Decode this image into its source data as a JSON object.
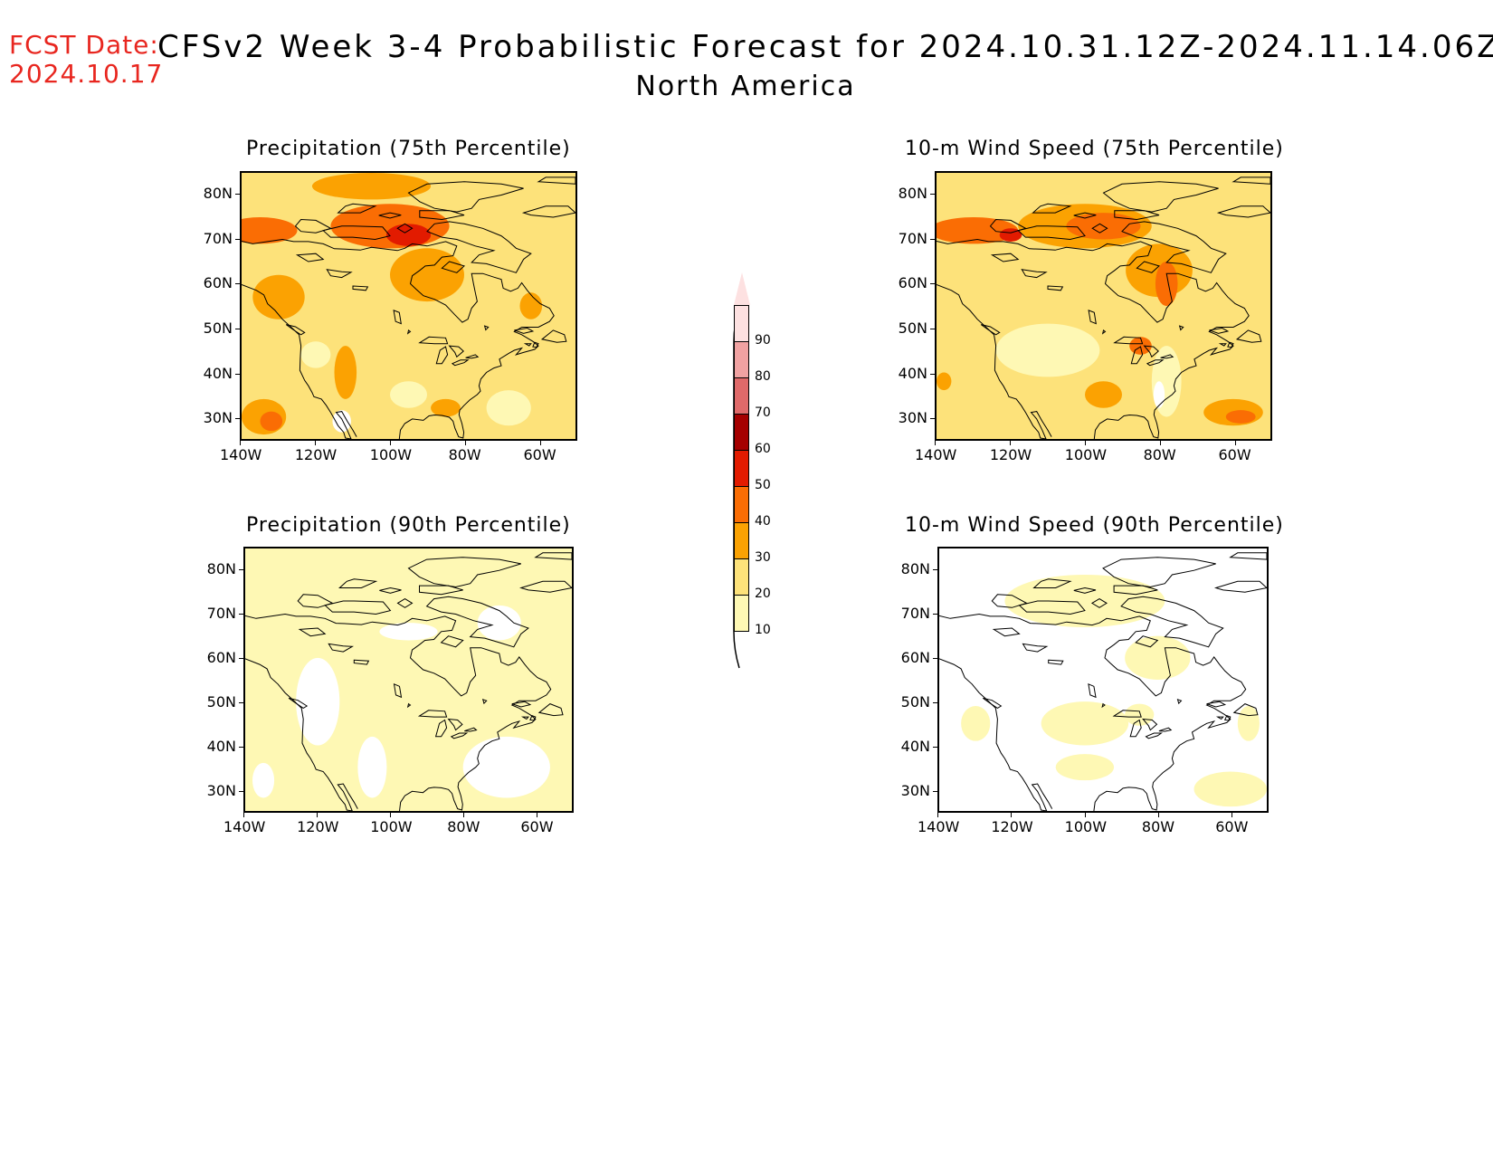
{
  "header": {
    "fcst_label": "FCST Date:",
    "fcst_date": "2024.10.17",
    "title": "CFSv2 Week 3-4 Probabilistic Forecast for 2024.10.31.12Z-2024.11.14.06Z",
    "region": "North America"
  },
  "colors": {
    "c0": "#ffffff",
    "c10": "#fef8b4",
    "c20": "#fde27a",
    "c30": "#fba202",
    "c40": "#fa6d04",
    "c50": "#e21b00",
    "c60": "#a50000",
    "c70": "#e06a6a",
    "c80": "#f0a2a2",
    "c90": "#fde1e1"
  },
  "axes": {
    "lat_labels": [
      "80N",
      "70N",
      "60N",
      "50N",
      "40N",
      "30N"
    ],
    "lon_labels": [
      "140W",
      "120W",
      "100W",
      "80W",
      "60W"
    ]
  },
  "colorbar": {
    "levels": [
      "10",
      "20",
      "30",
      "40",
      "50",
      "60",
      "70",
      "80",
      "90"
    ]
  },
  "panels": [
    {
      "title": "Precipitation (75th Percentile)",
      "base_level": 20,
      "blobs": [
        {
          "lon": -135,
          "lat": 72,
          "rx": 10,
          "ry": 3,
          "level": 40
        },
        {
          "lon": -100,
          "lat": 73,
          "rx": 16,
          "ry": 5,
          "level": 40
        },
        {
          "lon": -95,
          "lat": 71,
          "rx": 6,
          "ry": 2.5,
          "level": 50
        },
        {
          "lon": -90,
          "lat": 62,
          "rx": 10,
          "ry": 6,
          "level": 30
        },
        {
          "lon": -105,
          "lat": 82,
          "rx": 16,
          "ry": 3,
          "level": 30
        },
        {
          "lon": -130,
          "lat": 57,
          "rx": 7,
          "ry": 5,
          "level": 30
        },
        {
          "lon": -134,
          "lat": 30,
          "rx": 6,
          "ry": 4,
          "level": 30
        },
        {
          "lon": -132,
          "lat": 29,
          "rx": 3,
          "ry": 2.2,
          "level": 40
        },
        {
          "lon": -85,
          "lat": 32,
          "rx": 4,
          "ry": 2,
          "level": 30
        },
        {
          "lon": -62,
          "lat": 55,
          "rx": 3,
          "ry": 3,
          "level": 30
        },
        {
          "lon": -112,
          "lat": 40,
          "rx": 3,
          "ry": 6,
          "level": 30
        },
        {
          "lon": -95,
          "lat": 35,
          "rx": 5,
          "ry": 3,
          "level": 10
        },
        {
          "lon": -68,
          "lat": 32,
          "rx": 6,
          "ry": 4,
          "level": 10
        },
        {
          "lon": -120,
          "lat": 44,
          "rx": 4,
          "ry": 3,
          "level": 10
        },
        {
          "lon": -113,
          "lat": 29,
          "rx": 2.5,
          "ry": 2.5,
          "level": 0
        }
      ]
    },
    {
      "title": "10-m Wind Speed (75th Percentile)",
      "base_level": 20,
      "blobs": [
        {
          "lon": -130,
          "lat": 72,
          "rx": 12,
          "ry": 3,
          "level": 40
        },
        {
          "lon": -100,
          "lat": 73,
          "rx": 18,
          "ry": 5,
          "level": 30
        },
        {
          "lon": -95,
          "lat": 73,
          "rx": 10,
          "ry": 3,
          "level": 40
        },
        {
          "lon": -120,
          "lat": 71,
          "rx": 3,
          "ry": 1.5,
          "level": 50
        },
        {
          "lon": -80,
          "lat": 63,
          "rx": 9,
          "ry": 6,
          "level": 30
        },
        {
          "lon": -78,
          "lat": 60,
          "rx": 3,
          "ry": 5,
          "level": 40
        },
        {
          "lon": -85,
          "lat": 46,
          "rx": 3,
          "ry": 2,
          "level": 40
        },
        {
          "lon": -60,
          "lat": 31,
          "rx": 8,
          "ry": 3,
          "level": 30
        },
        {
          "lon": -58,
          "lat": 30,
          "rx": 4,
          "ry": 1.5,
          "level": 40
        },
        {
          "lon": -95,
          "lat": 35,
          "rx": 5,
          "ry": 3,
          "level": 30
        },
        {
          "lon": -138,
          "lat": 38,
          "rx": 2,
          "ry": 2,
          "level": 30
        },
        {
          "lon": -110,
          "lat": 45,
          "rx": 14,
          "ry": 6,
          "level": 10
        },
        {
          "lon": -78,
          "lat": 38,
          "rx": 4,
          "ry": 8,
          "level": 10
        },
        {
          "lon": -80,
          "lat": 35,
          "rx": 1.5,
          "ry": 3,
          "level": 0
        }
      ]
    },
    {
      "title": "Precipitation (90th Percentile)",
      "base_level": 10,
      "blobs": [
        {
          "lon": -120,
          "lat": 50,
          "rx": 6,
          "ry": 10,
          "level": 0
        },
        {
          "lon": -105,
          "lat": 35,
          "rx": 4,
          "ry": 7,
          "level": 0
        },
        {
          "lon": -68,
          "lat": 35,
          "rx": 12,
          "ry": 7,
          "level": 0
        },
        {
          "lon": -95,
          "lat": 66,
          "rx": 8,
          "ry": 2,
          "level": 0
        },
        {
          "lon": -135,
          "lat": 32,
          "rx": 3,
          "ry": 4,
          "level": 0
        },
        {
          "lon": -70,
          "lat": 68,
          "rx": 6,
          "ry": 4,
          "level": 0
        }
      ]
    },
    {
      "title": "10-m Wind Speed (90th Percentile)",
      "base_level": 0,
      "blobs": [
        {
          "lon": -100,
          "lat": 73,
          "rx": 22,
          "ry": 6,
          "level": 10
        },
        {
          "lon": -80,
          "lat": 60,
          "rx": 9,
          "ry": 5,
          "level": 10
        },
        {
          "lon": -100,
          "lat": 45,
          "rx": 12,
          "ry": 5,
          "level": 10
        },
        {
          "lon": -85,
          "lat": 47,
          "rx": 4,
          "ry": 2.5,
          "level": 10
        },
        {
          "lon": -100,
          "lat": 35,
          "rx": 8,
          "ry": 3,
          "level": 10
        },
        {
          "lon": -60,
          "lat": 30,
          "rx": 10,
          "ry": 4,
          "level": 10
        },
        {
          "lon": -130,
          "lat": 45,
          "rx": 4,
          "ry": 4,
          "level": 10
        },
        {
          "lon": -55,
          "lat": 45,
          "rx": 3,
          "ry": 4,
          "level": 10
        }
      ]
    }
  ]
}
